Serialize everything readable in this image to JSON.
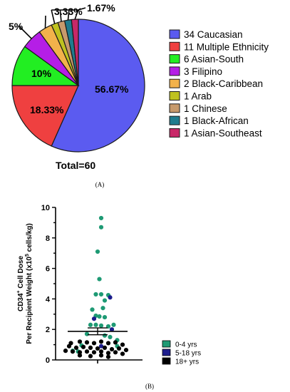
{
  "chart_data": [
    {
      "type": "pie",
      "panel_label": "(A)",
      "total_label": "Total=60",
      "slices": [
        {
          "count": 34,
          "name": "Caucasian",
          "legend": "34 Caucasian",
          "percent_label": "56.67%",
          "color": "#5b5bf0"
        },
        {
          "count": 11,
          "name": "Multiple Ethnicity",
          "legend": "11 Multiple Ethnicity",
          "percent_label": "18.33%",
          "color": "#ef4040"
        },
        {
          "count": 6,
          "name": "Asian-South",
          "legend": "6 Asian-South",
          "percent_label": "10%",
          "color": "#22ee22"
        },
        {
          "count": 3,
          "name": "Filipino",
          "legend": "3 Filipino",
          "percent_label": "5%",
          "color": "#b51ee6"
        },
        {
          "count": 2,
          "name": "Black-Caribbean",
          "legend": "2 Black-Caribbean",
          "percent_label": "3.33%",
          "color": "#f2b24b"
        },
        {
          "count": 1,
          "name": "Arab",
          "legend": "1 Arab",
          "percent_label": "",
          "color": "#bfc21f"
        },
        {
          "count": 1,
          "name": "Chinese",
          "legend": "1 Chinese",
          "percent_label": "",
          "color": "#c79a6c"
        },
        {
          "count": 1,
          "name": "Black-African",
          "legend": "1 Black-African",
          "percent_label": "",
          "color": "#1f7c8e"
        },
        {
          "count": 1,
          "name": "Asian-Southeast",
          "legend": "1 Asian-Southeast",
          "percent_label": "1.67%",
          "color": "#c82868"
        }
      ]
    },
    {
      "type": "scatter",
      "panel_label": "(B)",
      "ylabel_line1": "CD34",
      "ylabel_sup1": "+",
      "ylabel_line1_rest": " Cell Dose",
      "ylabel_line2": "Per Recipient Weight (x10",
      "ylabel_sup2": "5",
      "ylabel_line2_rest": " cells/kg)",
      "ylim": [
        0,
        10
      ],
      "yticks": [
        0,
        2,
        4,
        6,
        8,
        10
      ],
      "mean": 1.87,
      "sem": [
        1.65,
        2.1
      ],
      "legend": [
        {
          "label": "0-4 yrs",
          "color": "#1e9a74"
        },
        {
          "label": "5-18 yrs",
          "color": "#1c1c8c"
        },
        {
          "label": "18+ yrs",
          "color": "#000000"
        }
      ],
      "groups": [
        {
          "name": "0-4 yrs",
          "points": [
            [
              0.1,
              9.3
            ],
            [
              0.1,
              8.7
            ],
            [
              0.0,
              7.1
            ],
            [
              0.05,
              5.3
            ],
            [
              -0.05,
              4.3
            ],
            [
              0.1,
              4.3
            ],
            [
              0.3,
              4.25
            ],
            [
              0.2,
              3.9
            ],
            [
              -0.15,
              3.3
            ],
            [
              0.15,
              3.4
            ],
            [
              -0.05,
              2.9
            ],
            [
              0.05,
              2.85
            ],
            [
              0.2,
              2.8
            ],
            [
              -0.2,
              2.3
            ],
            [
              -0.05,
              2.3
            ],
            [
              0.1,
              2.25
            ],
            [
              0.3,
              2.2
            ],
            [
              0.45,
              2.3
            ],
            [
              -0.3,
              1.7
            ],
            [
              0.2,
              1.6
            ],
            [
              0.35,
              1.5
            ],
            [
              -0.45,
              0.95
            ],
            [
              0.55,
              1.3
            ],
            [
              0.55,
              0.9
            ],
            [
              -0.7,
              0.6
            ],
            [
              -0.55,
              0.55
            ]
          ]
        },
        {
          "name": "5-18 yrs",
          "points": [
            [
              0.35,
              4.1
            ],
            [
              -0.1,
              2.7
            ],
            [
              0.4,
              2.0
            ],
            [
              0.1,
              0.9
            ]
          ]
        },
        {
          "name": "18+ yrs",
          "points": [
            [
              -0.75,
              1.1
            ],
            [
              -0.5,
              1.2
            ],
            [
              -0.3,
              1.15
            ],
            [
              -0.1,
              1.1
            ],
            [
              0.1,
              1.2
            ],
            [
              0.3,
              1.1
            ],
            [
              0.5,
              1.15
            ],
            [
              0.7,
              1.0
            ],
            [
              -0.8,
              0.9
            ],
            [
              -0.6,
              0.8
            ],
            [
              -0.4,
              0.85
            ],
            [
              -0.2,
              0.8
            ],
            [
              0.0,
              0.75
            ],
            [
              0.2,
              0.8
            ],
            [
              0.4,
              0.7
            ],
            [
              0.6,
              0.75
            ],
            [
              0.8,
              0.65
            ],
            [
              -0.9,
              0.6
            ],
            [
              -0.7,
              0.55
            ],
            [
              -0.5,
              0.5
            ],
            [
              -0.3,
              0.55
            ],
            [
              -0.1,
              0.5
            ],
            [
              0.1,
              0.55
            ],
            [
              0.3,
              0.45
            ],
            [
              0.5,
              0.5
            ],
            [
              0.7,
              0.4
            ],
            [
              -0.5,
              0.3
            ],
            [
              -0.2,
              0.25
            ],
            [
              0.1,
              0.3
            ],
            [
              0.3,
              0.2
            ]
          ]
        }
      ]
    }
  ]
}
